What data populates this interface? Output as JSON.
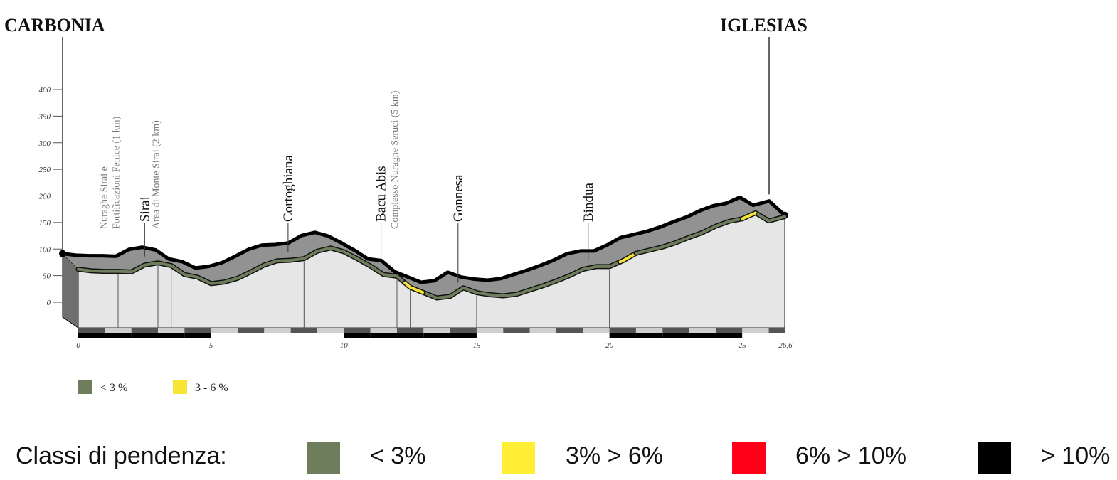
{
  "chart_data": {
    "type": "area",
    "title": "",
    "xlabel": "",
    "ylabel": "",
    "xlim": [
      0,
      26.6
    ],
    "ylim": [
      0,
      400
    ],
    "y_ticks": [
      "400",
      "350",
      "300",
      "250",
      "200",
      "150",
      "100",
      "50",
      "0"
    ],
    "y_tick_values": [
      400,
      350,
      300,
      250,
      200,
      150,
      100,
      50,
      0
    ],
    "x_ticks": [
      "0",
      "5",
      "10",
      "15",
      "20",
      "25",
      "26,6"
    ],
    "x_tick_values": [
      0,
      5,
      10,
      15,
      20,
      25,
      26.6
    ],
    "grid": false,
    "endpoints": {
      "start": {
        "label": "CARBONIA",
        "x": 0
      },
      "end": {
        "label": "IGLESIAS",
        "x": 26.6
      }
    },
    "series": [
      {
        "x": [
          0,
          0.5,
          1,
          1.5,
          2,
          2.5,
          3,
          3.5,
          4,
          4.5,
          5,
          5.5,
          6,
          6.5,
          7,
          7.5,
          8,
          8.5,
          9,
          9.5,
          10,
          10.5,
          11,
          11.5,
          12,
          12.5,
          13,
          13.5,
          14,
          14.5,
          15,
          15.5,
          16,
          16.5,
          17,
          17.5,
          18,
          18.5,
          19,
          19.5,
          20,
          20.5,
          21,
          21.5,
          22,
          22.5,
          23,
          23.5,
          24,
          24.5,
          25,
          25.5,
          26,
          26.6
        ],
        "values": [
          62,
          59,
          58,
          58,
          57,
          70,
          74,
          69,
          52,
          47,
          35,
          38,
          45,
          57,
          70,
          78,
          79,
          82,
          96,
          102,
          95,
          82,
          68,
          52,
          49,
          28,
          18,
          8,
          11,
          27,
          18,
          14,
          12,
          15,
          23,
          31,
          40,
          50,
          62,
          67,
          67,
          78,
          92,
          98,
          104,
          112,
          122,
          131,
          143,
          152,
          157,
          168,
          153,
          161
        ]
      }
    ],
    "slope_segments": [
      {
        "class": "< 3 %",
        "from": 0,
        "to": 12.3
      },
      {
        "class": "3 - 6 %",
        "from": 12.3,
        "to": 13.1
      },
      {
        "class": "< 3 %",
        "from": 13.1,
        "to": 20.4
      },
      {
        "class": "3 - 6 %",
        "from": 20.4,
        "to": 21
      },
      {
        "class": "< 3 %",
        "from": 21,
        "to": 25
      },
      {
        "class": "3 - 6 %",
        "from": 25,
        "to": 25.6
      },
      {
        "class": "< 3 %",
        "from": 25.6,
        "to": 26.6
      }
    ],
    "annotations": [
      {
        "label": "Sirai",
        "x": 2.5,
        "style": "main",
        "line_to": 3
      },
      {
        "label": "Cortoghiana",
        "x": 7.9,
        "style": "main",
        "line_to": 8.5
      },
      {
        "label": "Bacu Abis",
        "x": 11.4,
        "style": "main",
        "line_to": 12.0
      },
      {
        "label": "Gonnesa",
        "x": 14.3,
        "style": "main",
        "line_to": 15.0
      },
      {
        "label": "Bindua",
        "x": 19.2,
        "style": "main",
        "line_to": 20.0
      },
      {
        "label": "Nuraghe Sirai e",
        "x": 0.95,
        "style": "minor",
        "line_to": 1.5
      },
      {
        "label": "Fortificazioni Fenice (1 km)",
        "x": 1.4,
        "style": "minor",
        "line_to": 1.5
      },
      {
        "label": "Area di Monte Sirai (2 km)",
        "x": 2.9,
        "style": "minor",
        "line_to": 3.5
      },
      {
        "label": "Complesso Nuraghe Seruci (5 km)",
        "x": 11.9,
        "style": "minor",
        "line_to": 12.5
      }
    ],
    "legend": {
      "placement": "bottom-left",
      "items": [
        {
          "label": "< 3 %",
          "color": "#6e7e5c"
        },
        {
          "label": "3 - 6 %",
          "color": "#f7e535"
        }
      ]
    }
  },
  "slope_legend": {
    "title": "Classi di pendenza:",
    "items": [
      {
        "label": "< 3%",
        "color": "#6e7e5c"
      },
      {
        "label": "3% > 6%",
        "color": "#ffee33"
      },
      {
        "label": "6% > 10%",
        "color": "#ff0019"
      },
      {
        "label": "> 10%",
        "color": "#000000"
      }
    ]
  }
}
